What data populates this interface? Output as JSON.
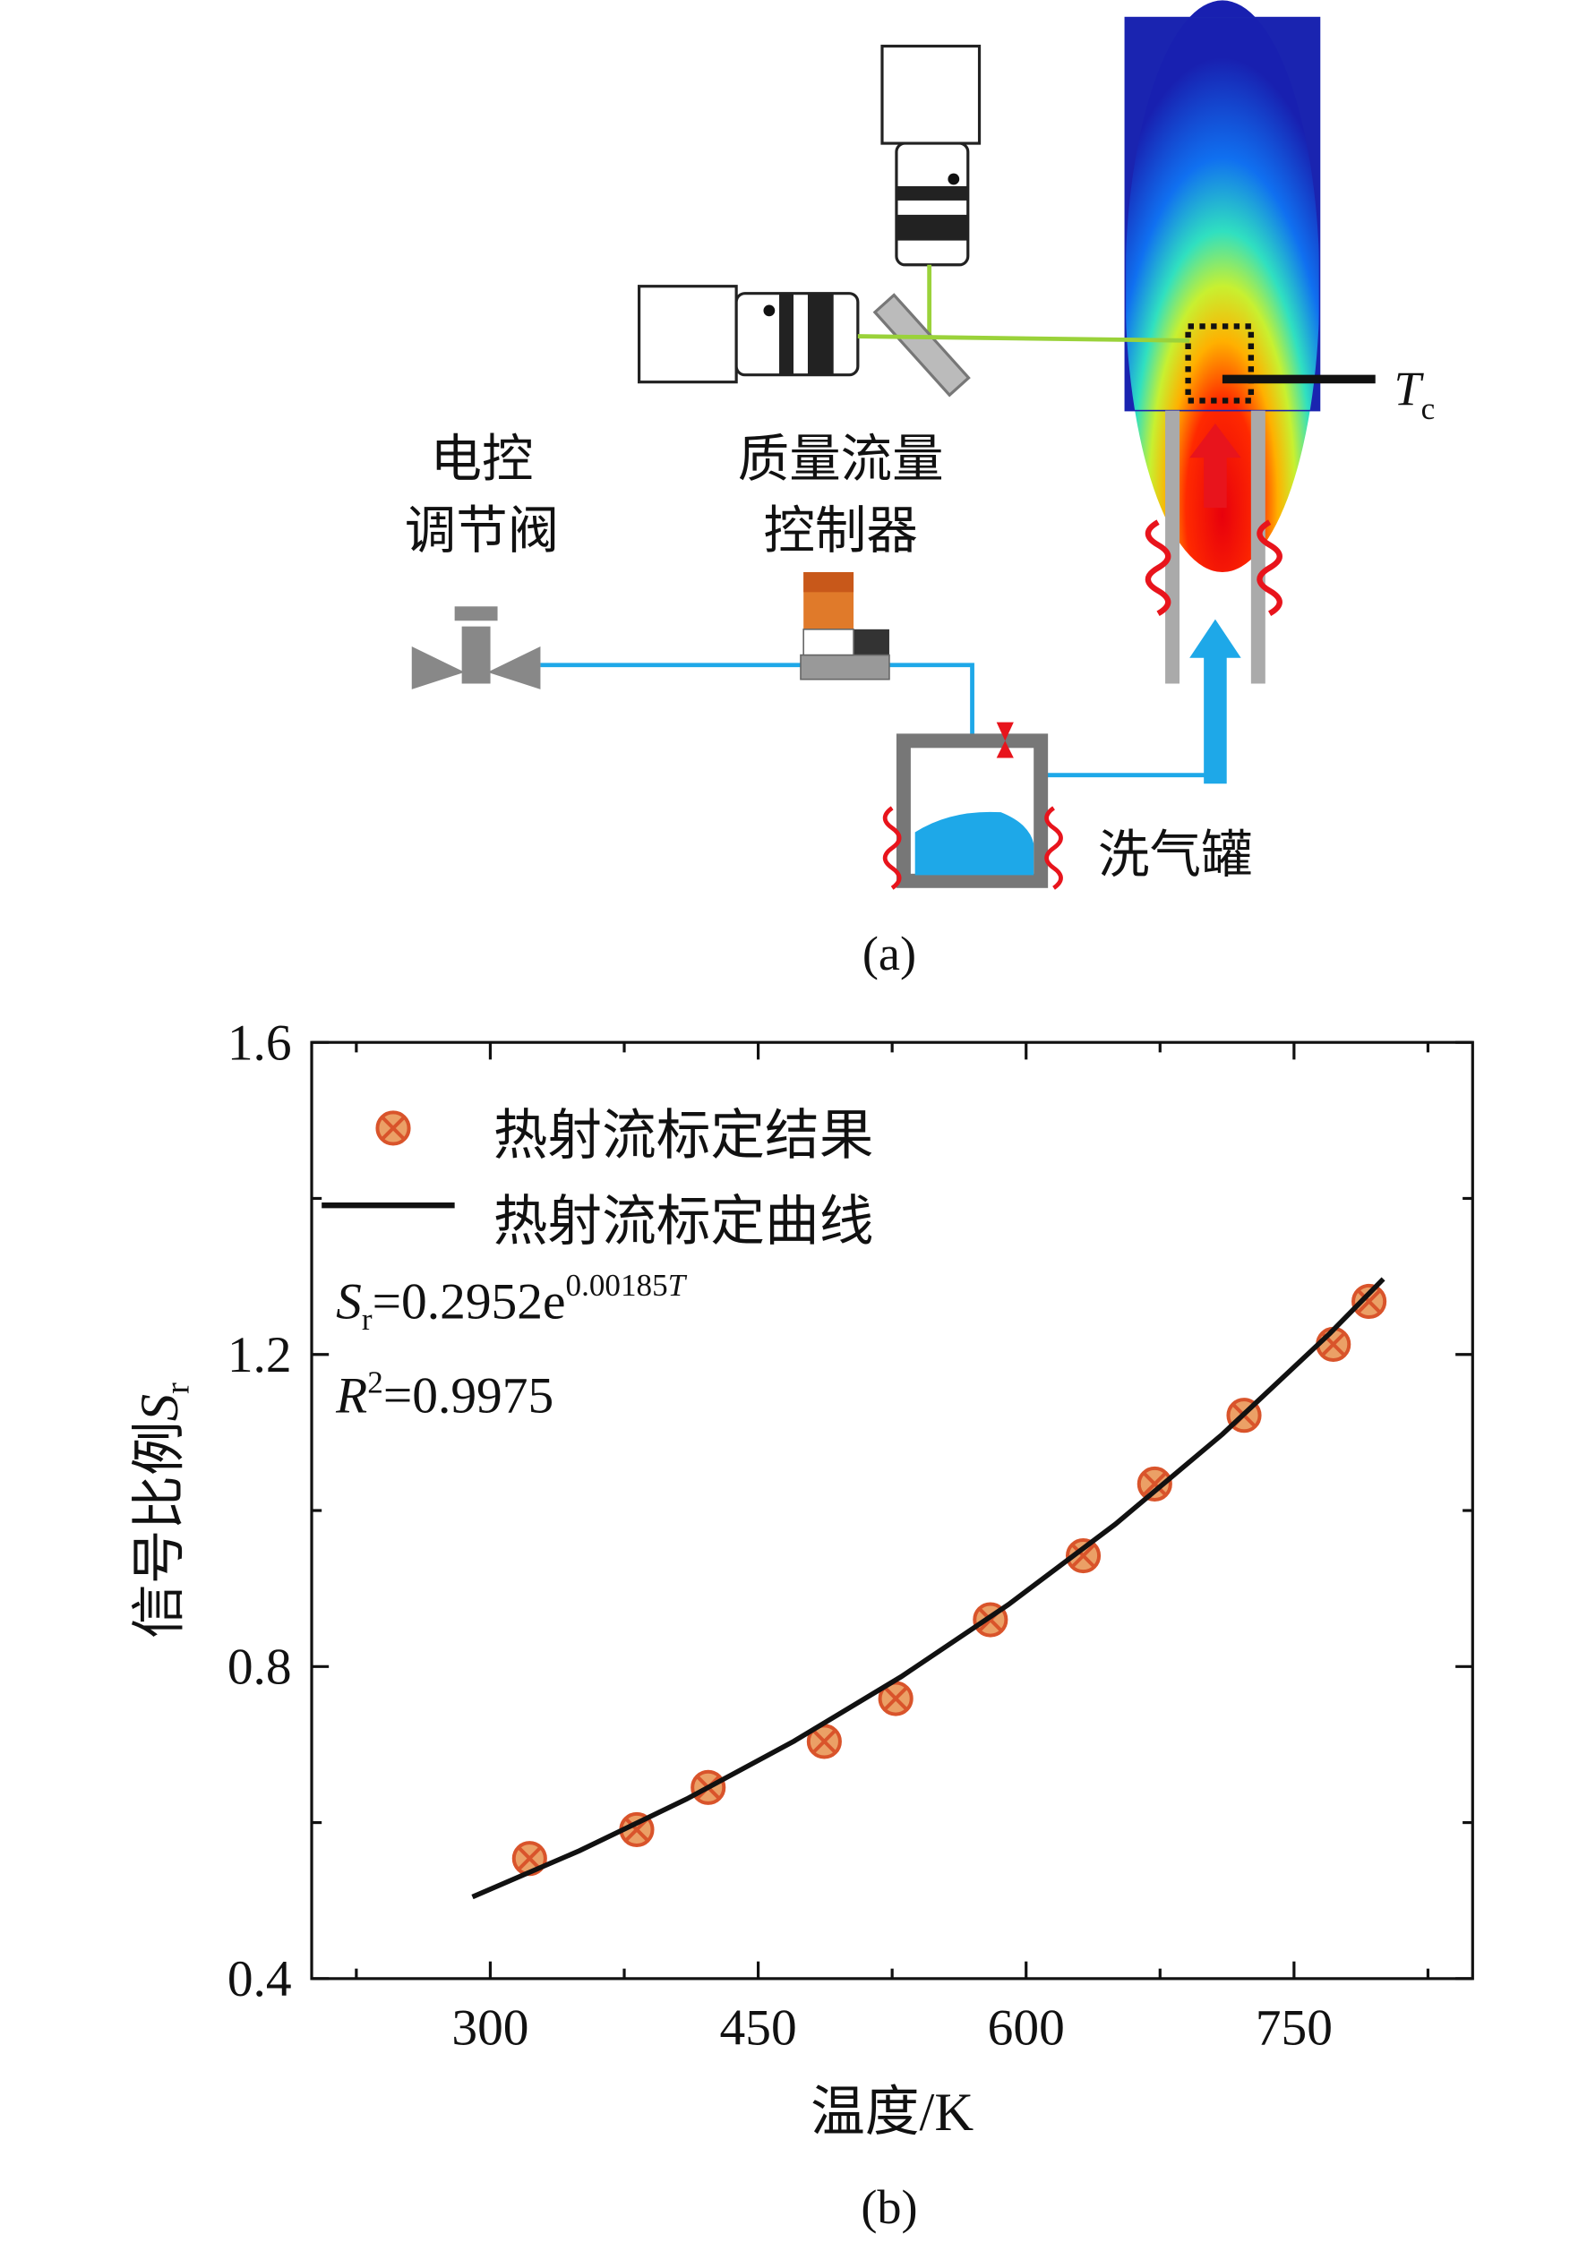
{
  "diagram": {
    "caption": "(a)",
    "valve_label": [
      "电控",
      "调节阀"
    ],
    "controller_label": [
      "质量流量",
      "控制器"
    ],
    "washer_label": "洗气罐",
    "thermocouple_label": {
      "symbol": "T",
      "subscript": "c"
    }
  },
  "chart_data": {
    "type": "scatter",
    "caption": "(b)",
    "xlabel": "温度/K",
    "ylabel": {
      "text": "信号比例",
      "symbol": "S",
      "subscript": "r"
    },
    "xlim": [
      200,
      850
    ],
    "xticks": [
      300,
      450,
      600,
      750
    ],
    "xminor": [
      225,
      375,
      525,
      675,
      825
    ],
    "ylim": [
      0.4,
      1.6
    ],
    "yticks": [
      0.4,
      0.8,
      1.2,
      1.6
    ],
    "yminor": [
      0.6,
      1.0,
      1.4
    ],
    "series": [
      {
        "name": "热射流标定结果",
        "type": "scatter",
        "color": "#d9542b",
        "x": [
          322,
          382,
          422,
          487,
          527,
          580,
          632,
          672,
          722,
          772,
          792
        ],
        "values": [
          0.554,
          0.591,
          0.645,
          0.704,
          0.759,
          0.86,
          0.942,
          1.034,
          1.122,
          1.213,
          1.268
        ]
      },
      {
        "name": "热射流标定曲线",
        "type": "line",
        "color": "#111111",
        "x": [
          290,
          350,
          410,
          470,
          530,
          590,
          650,
          710,
          770,
          800
        ],
        "values": [
          0.5048,
          0.564,
          0.6303,
          0.7043,
          0.7869,
          0.8793,
          0.9825,
          1.0979,
          1.2268,
          1.2968
        ]
      }
    ],
    "fit_equation": {
      "symbol": "S",
      "subscript": "r",
      "body": "=0.2952e",
      "exponent": "0.00185",
      "exponent_var": "T"
    },
    "r_squared": {
      "symbol": "R",
      "superscript": "2",
      "body": "=0.9975"
    }
  }
}
